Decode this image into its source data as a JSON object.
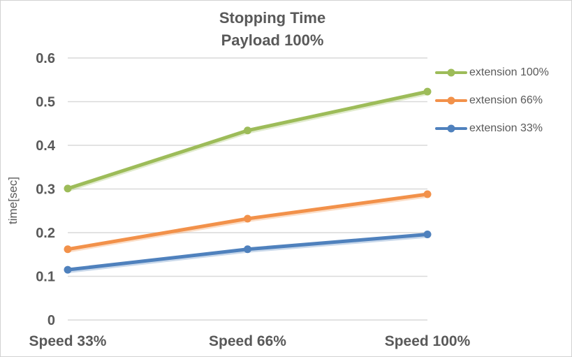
{
  "window": {
    "background": "#ffffff",
    "border_color": "#d2d2d2"
  },
  "chart_data": {
    "type": "line",
    "title": "Stopping Time",
    "subtitle": "Payload 100%",
    "categories": [
      "Speed 33%",
      "Speed 66%",
      "Speed 100%"
    ],
    "series": [
      {
        "name": "extension 100%",
        "color": "#9dbc59",
        "values": [
          0.301,
          0.434,
          0.523
        ]
      },
      {
        "name": "extension 66%",
        "color": "#f2914a",
        "values": [
          0.162,
          0.232,
          0.288
        ]
      },
      {
        "name": "extension 33%",
        "color": "#4f81bd",
        "values": [
          0.115,
          0.162,
          0.196
        ]
      }
    ],
    "xlabel": "",
    "ylabel": "time[sec]",
    "ylim": [
      0,
      0.6
    ],
    "yticks": [
      0,
      0.1,
      0.2,
      0.3,
      0.4,
      0.5,
      0.6
    ],
    "ytick_labels": [
      "0",
      "0.1",
      "0.2",
      "0.3",
      "0.4",
      "0.5",
      "0.6"
    ],
    "grid": true,
    "legend_position": "right",
    "gridline_color": "#d9d9d9",
    "text_color": "#595959",
    "marker": "circle"
  }
}
